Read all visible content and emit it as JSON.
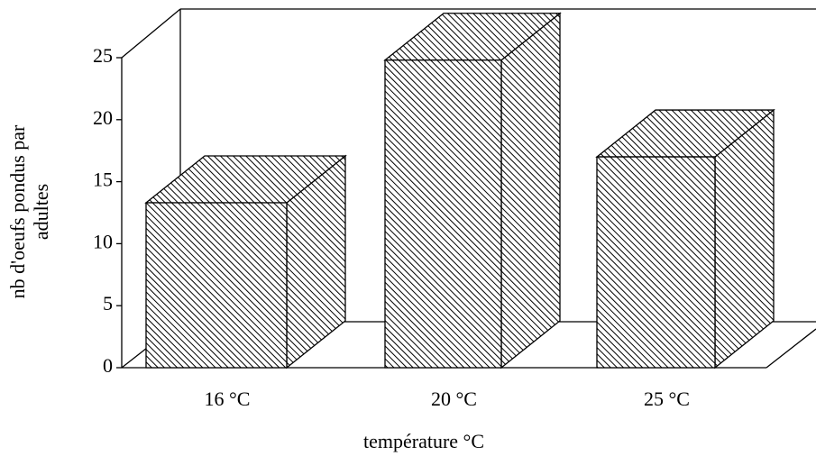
{
  "chart_data": {
    "type": "bar3d",
    "y_label": [
      "nb d'oeufs pondus par",
      "adultes"
    ],
    "x_label": "température °C",
    "categories": [
      "16 °C",
      "20 °C",
      "25 °C"
    ],
    "values": [
      13.3,
      24.8,
      17
    ],
    "ylim": [
      0,
      25
    ],
    "yticks": [
      0,
      5,
      10,
      15,
      20,
      25
    ],
    "color": "#000000"
  }
}
